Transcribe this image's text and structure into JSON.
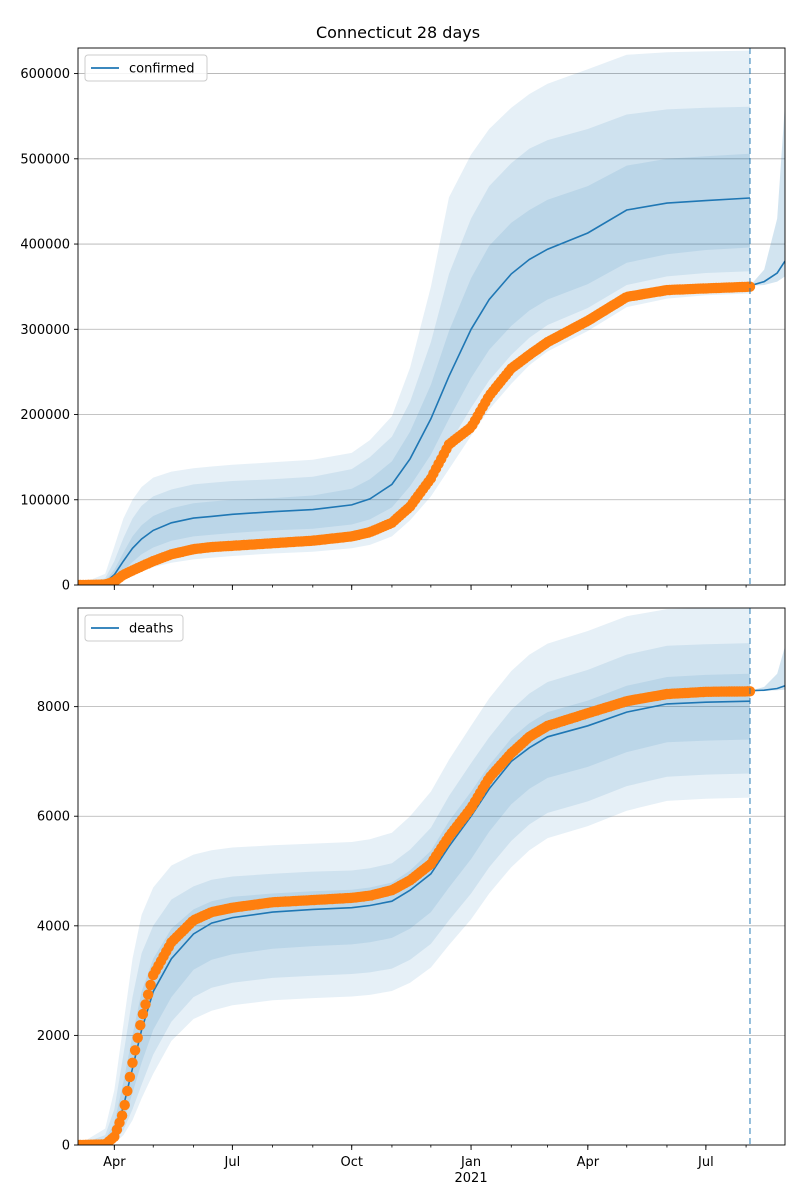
{
  "chart_data": {
    "type": "line",
    "title": "Connecticut 28 days",
    "x_tick_labels": [
      "Apr",
      "Jul",
      "Oct",
      "Jan",
      "Apr",
      "Jul"
    ],
    "x_tick_dates": [
      "2020-04-01",
      "2020-07-01",
      "2020-10-01",
      "2021-01-01",
      "2021-04-01",
      "2021-07-01"
    ],
    "x_year_label": "2021",
    "x_range": [
      "2020-03-04",
      "2021-08-31"
    ],
    "forecast_start": "2021-08-04",
    "grid": "horizontal",
    "legend_placement": "upper left",
    "colors": {
      "model": "#1f77b4",
      "observed": "#ff7f0e",
      "forecast_line": "#1f77b4",
      "band": "#1f77b4"
    },
    "panels": [
      {
        "name": "confirmed",
        "legend_label": "confirmed",
        "ylim": [
          0,
          630000
        ],
        "y_ticks": [
          0,
          100000,
          200000,
          300000,
          400000,
          500000,
          600000
        ],
        "model": {
          "x": [
            "2020-03-04",
            "2020-03-25",
            "2020-04-01",
            "2020-04-08",
            "2020-04-15",
            "2020-04-22",
            "2020-05-01",
            "2020-05-15",
            "2020-06-01",
            "2020-06-15",
            "2020-07-01",
            "2020-08-01",
            "2020-09-01",
            "2020-10-01",
            "2020-10-15",
            "2020-11-01",
            "2020-11-15",
            "2020-12-01",
            "2020-12-15",
            "2021-01-01",
            "2021-01-15",
            "2021-02-01",
            "2021-02-15",
            "2021-03-01",
            "2021-04-01",
            "2021-05-01",
            "2021-06-01",
            "2021-07-01",
            "2021-08-04"
          ],
          "median": [
            0,
            3000,
            12000,
            28000,
            43000,
            54000,
            64000,
            73000,
            78500,
            80500,
            83000,
            86000,
            88500,
            94000,
            101000,
            118000,
            148000,
            195000,
            245000,
            300000,
            335000,
            365000,
            382000,
            394000,
            413000,
            440000,
            448000,
            451000,
            454000
          ],
          "band_50_low": [
            0,
            1500,
            7000,
            17000,
            27000,
            36000,
            44000,
            52000,
            57000,
            59000,
            61000,
            64000,
            66000,
            71000,
            77000,
            91000,
            116000,
            153000,
            195000,
            243000,
            276000,
            304000,
            322000,
            335000,
            353000,
            378000,
            388000,
            393000,
            396000
          ],
          "band_50_high": [
            0,
            5000,
            18000,
            38000,
            57000,
            70000,
            81000,
            90000,
            96000,
            98000,
            100000,
            102000,
            105000,
            113000,
            124000,
            145000,
            180000,
            235000,
            298000,
            360000,
            398000,
            425000,
            440000,
            452000,
            468000,
            492000,
            500000,
            503000,
            506000
          ],
          "band_80_low": [
            0,
            800,
            4000,
            11000,
            19000,
            26000,
            33000,
            40000,
            44000,
            46000,
            48000,
            51000,
            53000,
            57000,
            62000,
            74000,
            96000,
            128000,
            165000,
            208000,
            240000,
            270000,
            290000,
            305000,
            325000,
            352000,
            362000,
            366000,
            368000
          ],
          "band_80_high": [
            0,
            8000,
            28000,
            55000,
            78000,
            93000,
            104000,
            112000,
            118000,
            120000,
            122000,
            124000,
            127000,
            136000,
            150000,
            174000,
            215000,
            285000,
            365000,
            430000,
            468000,
            495000,
            512000,
            522000,
            535000,
            552000,
            558000,
            560000,
            561000
          ],
          "band_95_low": [
            0,
            300,
            2000,
            6000,
            11000,
            16000,
            21000,
            26000,
            30000,
            32000,
            34000,
            37000,
            39000,
            43000,
            47000,
            57000,
            76000,
            104000,
            136000,
            175000,
            206000,
            236000,
            258000,
            274000,
            298000,
            326000,
            336000,
            340000,
            342000
          ],
          "band_95_high": [
            0,
            13000,
            45000,
            78000,
            100000,
            115000,
            126000,
            133000,
            137000,
            139000,
            141000,
            144000,
            147000,
            155000,
            170000,
            198000,
            255000,
            350000,
            455000,
            505000,
            535000,
            560000,
            576000,
            588000,
            605000,
            622000,
            625000,
            626000,
            627000
          ]
        },
        "observed": {
          "x": [
            "2020-03-04",
            "2020-03-25",
            "2020-04-01",
            "2020-04-08",
            "2020-04-15",
            "2020-04-22",
            "2020-05-01",
            "2020-05-15",
            "2020-06-01",
            "2020-06-15",
            "2020-07-01",
            "2020-08-01",
            "2020-09-01",
            "2020-10-01",
            "2020-10-15",
            "2020-11-01",
            "2020-11-15",
            "2020-12-01",
            "2020-12-15",
            "2021-01-01",
            "2021-01-15",
            "2021-02-01",
            "2021-02-15",
            "2021-03-01",
            "2021-04-01",
            "2021-05-01",
            "2021-06-01",
            "2021-07-01",
            "2021-08-04"
          ],
          "y": [
            0,
            500,
            4000,
            12000,
            17000,
            22000,
            28000,
            36000,
            42000,
            44500,
            46000,
            49000,
            52000,
            57000,
            62000,
            73000,
            92000,
            125000,
            165000,
            185000,
            222000,
            254000,
            270000,
            285000,
            310000,
            338000,
            346000,
            348000,
            350000
          ]
        },
        "forecast": {
          "x": [
            "2021-08-04",
            "2021-08-15",
            "2021-08-25",
            "2021-08-31"
          ],
          "median": [
            351000,
            356000,
            366000,
            380000
          ],
          "low": [
            351000,
            352000,
            356000,
            362000
          ],
          "high": [
            351000,
            370000,
            430000,
            565000
          ]
        }
      },
      {
        "name": "deaths",
        "legend_label": "deaths",
        "ylim": [
          0,
          9800
        ],
        "y_ticks": [
          0,
          2000,
          4000,
          6000,
          8000
        ],
        "model": {
          "x": [
            "2020-03-04",
            "2020-03-25",
            "2020-04-01",
            "2020-04-08",
            "2020-04-15",
            "2020-04-22",
            "2020-05-01",
            "2020-05-15",
            "2020-06-01",
            "2020-06-15",
            "2020-07-01",
            "2020-08-01",
            "2020-09-01",
            "2020-10-01",
            "2020-10-15",
            "2020-11-01",
            "2020-11-15",
            "2020-12-01",
            "2020-12-15",
            "2021-01-01",
            "2021-01-15",
            "2021-02-01",
            "2021-02-15",
            "2021-03-01",
            "2021-04-01",
            "2021-05-01",
            "2021-06-01",
            "2021-07-01",
            "2021-08-04"
          ],
          "median": [
            0,
            50,
            200,
            700,
            1400,
            2100,
            2800,
            3400,
            3850,
            4050,
            4150,
            4250,
            4300,
            4330,
            4370,
            4450,
            4650,
            4950,
            5450,
            6000,
            6500,
            7000,
            7250,
            7450,
            7650,
            7900,
            8050,
            8080,
            8100
          ],
          "band_50_low": [
            0,
            20,
            110,
            430,
            950,
            1500,
            2100,
            2700,
            3200,
            3380,
            3480,
            3580,
            3630,
            3660,
            3700,
            3780,
            3950,
            4250,
            4700,
            5220,
            5720,
            6220,
            6500,
            6700,
            6900,
            7170,
            7350,
            7380,
            7400
          ],
          "band_50_high": [
            0,
            100,
            400,
            1150,
            2000,
            2800,
            3400,
            3950,
            4300,
            4450,
            4530,
            4590,
            4630,
            4660,
            4700,
            4790,
            5010,
            5370,
            5910,
            6450,
            6930,
            7420,
            7700,
            7900,
            8110,
            8380,
            8540,
            8580,
            8600
          ],
          "band_80_low": [
            0,
            10,
            60,
            270,
            650,
            1100,
            1650,
            2250,
            2700,
            2870,
            2960,
            3050,
            3090,
            3120,
            3150,
            3220,
            3380,
            3670,
            4100,
            4590,
            5070,
            5550,
            5850,
            6060,
            6270,
            6550,
            6720,
            6760,
            6780
          ],
          "band_80_high": [
            0,
            180,
            650,
            1650,
            2700,
            3500,
            4000,
            4480,
            4720,
            4840,
            4900,
            4950,
            4990,
            5010,
            5050,
            5140,
            5390,
            5790,
            6370,
            6970,
            7440,
            7940,
            8240,
            8450,
            8670,
            8950,
            9110,
            9140,
            9160
          ],
          "band_95_low": [
            0,
            5,
            30,
            180,
            450,
            850,
            1300,
            1900,
            2300,
            2450,
            2550,
            2640,
            2680,
            2710,
            2740,
            2810,
            2960,
            3240,
            3650,
            4120,
            4590,
            5070,
            5380,
            5600,
            5820,
            6100,
            6280,
            6320,
            6340
          ],
          "band_95_high": [
            0,
            300,
            1000,
            2200,
            3400,
            4200,
            4700,
            5100,
            5300,
            5380,
            5430,
            5470,
            5500,
            5530,
            5580,
            5700,
            6000,
            6450,
            7030,
            7650,
            8150,
            8650,
            8950,
            9150,
            9380,
            9650,
            9780,
            9800,
            9800
          ]
        },
        "observed": {
          "x": [
            "2020-03-04",
            "2020-03-25",
            "2020-04-01",
            "2020-04-08",
            "2020-04-15",
            "2020-04-22",
            "2020-05-01",
            "2020-05-15",
            "2020-06-01",
            "2020-06-15",
            "2020-07-01",
            "2020-08-01",
            "2020-09-01",
            "2020-10-01",
            "2020-10-15",
            "2020-11-01",
            "2020-11-15",
            "2020-12-01",
            "2020-12-15",
            "2021-01-01",
            "2021-01-15",
            "2021-02-01",
            "2021-02-15",
            "2021-03-01",
            "2021-04-01",
            "2021-05-01",
            "2021-06-01",
            "2021-07-01",
            "2021-08-04"
          ],
          "y": [
            0,
            10,
            150,
            600,
            1500,
            2300,
            3100,
            3700,
            4100,
            4250,
            4330,
            4430,
            4470,
            4510,
            4550,
            4650,
            4830,
            5130,
            5630,
            6150,
            6700,
            7150,
            7450,
            7650,
            7880,
            8100,
            8230,
            8270,
            8280
          ]
        },
        "forecast": {
          "x": [
            "2021-08-04",
            "2021-08-15",
            "2021-08-25",
            "2021-08-31"
          ],
          "median": [
            8290,
            8300,
            8330,
            8380
          ],
          "low": [
            8290,
            8290,
            8300,
            8310
          ],
          "high": [
            8290,
            8360,
            8600,
            9100
          ]
        }
      }
    ]
  }
}
